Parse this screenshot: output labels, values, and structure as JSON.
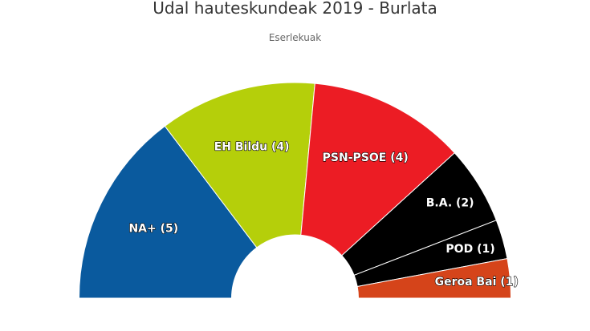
{
  "chart_data": {
    "type": "pie",
    "subtype": "parliament-semicircle",
    "title": "Udal hauteskundeak 2019 - Burlata",
    "subtitle": "Eserlekuak",
    "series": [
      {
        "name": "NA+",
        "value": 5,
        "label": "NA+ (5)",
        "color": "#0a5a9e"
      },
      {
        "name": "EH Bildu",
        "value": 4,
        "label": "EH Bildu (4)",
        "color": "#b5cf0a"
      },
      {
        "name": "PSN-PSOE",
        "value": 4,
        "label": "PSN-PSOE (4)",
        "color": "#ec1c24"
      },
      {
        "name": "B.A.",
        "value": 2,
        "label": "B.A. (2)",
        "color": "#000000"
      },
      {
        "name": "POD",
        "value": 1,
        "label": "POD (1)",
        "color": "#000000"
      },
      {
        "name": "Geroa Bai",
        "value": 1,
        "label": "Geroa Bai (1)",
        "color": "#d5441a"
      }
    ],
    "total": 17,
    "legend": "none"
  }
}
